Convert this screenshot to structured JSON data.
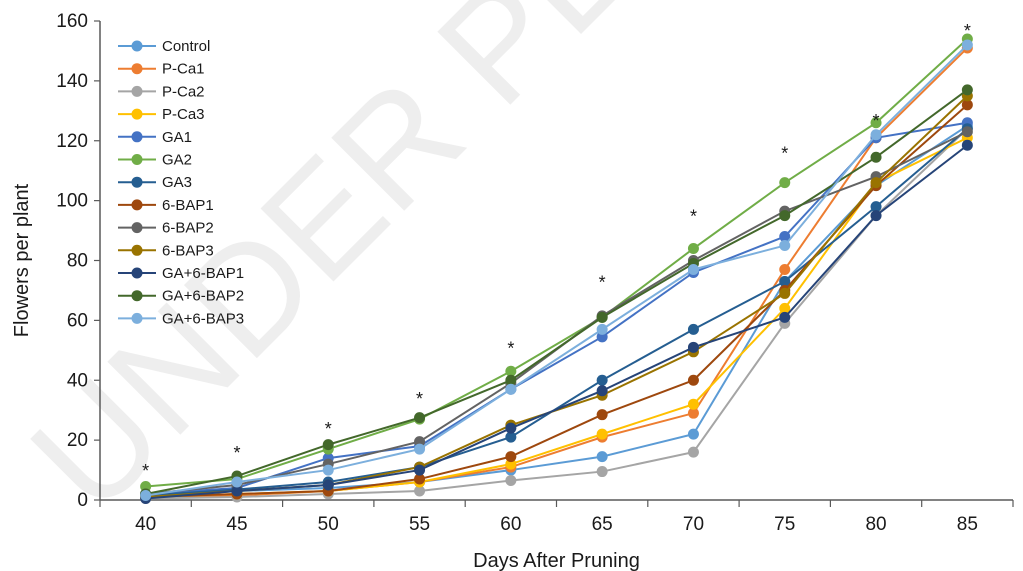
{
  "watermark": "UNDER PEER REVIEW",
  "chart_data": {
    "type": "line",
    "title": "",
    "xlabel": "Days After Pruning",
    "ylabel": "Flowers per plant",
    "x": [
      40,
      45,
      50,
      55,
      60,
      65,
      70,
      75,
      80,
      85
    ],
    "xlim": [
      37.5,
      87.5
    ],
    "ylim": [
      0,
      160
    ],
    "yticks": [
      0,
      20,
      40,
      60,
      80,
      100,
      120,
      140,
      160
    ],
    "grid": false,
    "legend_position": "top-left",
    "significance_marks": {
      "symbol": "*",
      "x": [
        40,
        45,
        50,
        55,
        60,
        65,
        70,
        75,
        80,
        85
      ],
      "y": [
        11,
        17,
        25,
        35,
        52,
        74,
        96,
        117,
        128,
        158
      ]
    },
    "series": [
      {
        "name": "Control",
        "color": "#5b9bd5",
        "values": [
          2,
          3,
          4,
          6,
          10,
          14.5,
          22,
          73,
          105,
          125
        ]
      },
      {
        "name": "P-Ca1",
        "color": "#ed7d31",
        "values": [
          1,
          1.5,
          3,
          6,
          11,
          21,
          29,
          77,
          121,
          151
        ]
      },
      {
        "name": "P-Ca2",
        "color": "#a5a5a5",
        "values": [
          0.5,
          1,
          2,
          3,
          6.5,
          9.5,
          16,
          59,
          95,
          124
        ]
      },
      {
        "name": "P-Ca3",
        "color": "#ffc000",
        "values": [
          1,
          2,
          3,
          6,
          12,
          22,
          32,
          64,
          106,
          121
        ]
      },
      {
        "name": "GA1",
        "color": "#4472c4",
        "values": [
          2,
          4,
          14,
          18,
          37,
          54.5,
          76,
          88,
          121,
          126
        ]
      },
      {
        "name": "GA2",
        "color": "#70ad47",
        "values": [
          4.5,
          7,
          17,
          27,
          43,
          61,
          84,
          106,
          126,
          154
        ]
      },
      {
        "name": "GA3",
        "color": "#255e91",
        "values": [
          1.5,
          3.5,
          6,
          11,
          21,
          40,
          57,
          73,
          98,
          124
        ]
      },
      {
        "name": "6-BAP1",
        "color": "#9e480e",
        "values": [
          1,
          2,
          3,
          7,
          14.5,
          28.5,
          40,
          70,
          105,
          132
        ]
      },
      {
        "name": "6-BAP2",
        "color": "#636363",
        "values": [
          2,
          5,
          12,
          19.5,
          39,
          61.5,
          80,
          96.5,
          108,
          123
        ]
      },
      {
        "name": "6-BAP3",
        "color": "#997300",
        "values": [
          1,
          3,
          5,
          11,
          25,
          35,
          49.5,
          69,
          106,
          135
        ]
      },
      {
        "name": "GA+6-BAP1",
        "color": "#264478",
        "values": [
          0.5,
          3,
          5,
          10,
          24,
          36.5,
          51,
          61,
          95,
          118.5
        ]
      },
      {
        "name": "GA+6-BAP2",
        "color": "#43682b",
        "values": [
          2,
          8,
          18.5,
          27.5,
          40,
          61,
          79,
          95,
          114.5,
          137
        ]
      },
      {
        "name": "GA+6-BAP3",
        "color": "#7cafdd",
        "values": [
          1.5,
          6,
          10,
          17,
          37,
          57,
          77,
          85,
          122,
          152
        ]
      }
    ]
  }
}
